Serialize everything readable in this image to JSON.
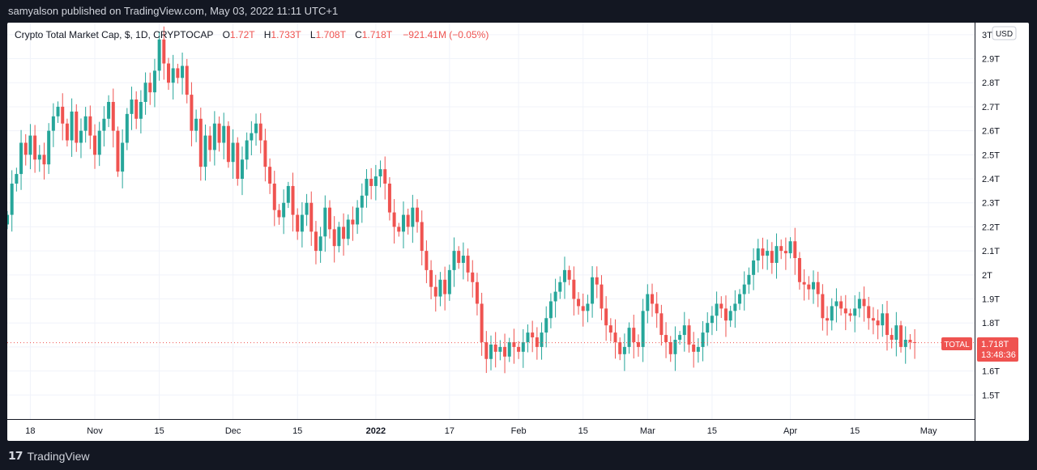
{
  "publisher_line": "samyalson published on TradingView.com, May 03, 2022 11:11 UTC+1",
  "legend": {
    "symbol": "Crypto Total Market Cap, $, 1D, CRYPTOCAP",
    "o_label": "O",
    "o_value": "1.72T",
    "h_label": "H",
    "h_value": "1.733T",
    "l_label": "L",
    "l_value": "1.708T",
    "c_label": "C",
    "c_value": "1.718T",
    "change": "−921.41M (−0.05%)"
  },
  "currency_badge": "USD",
  "price_tag": {
    "name": "TOTAL",
    "value": "1.718T",
    "countdown": "13:48:36"
  },
  "footer_brand": "TradingView",
  "colors": {
    "up": "#26a69a",
    "down": "#ef5350",
    "grid": "#f0f3fa",
    "axis_text": "#131722",
    "legend_value": "#ef5350"
  },
  "chart_data": {
    "type": "candlestick",
    "title": "Crypto Total Market Cap, $, 1D, CRYPTOCAP",
    "ylabel": "",
    "ylim": [
      1.4,
      3.05
    ],
    "y_ticks": [
      {
        "value": 1.5,
        "label": "1.5T"
      },
      {
        "value": 1.6,
        "label": "1.6T"
      },
      {
        "value": 1.7,
        "label": "1.7T"
      },
      {
        "value": 1.8,
        "label": "1.8T"
      },
      {
        "value": 1.9,
        "label": "1.9T"
      },
      {
        "value": 2.0,
        "label": "2T"
      },
      {
        "value": 2.1,
        "label": "2.1T"
      },
      {
        "value": 2.2,
        "label": "2.2T"
      },
      {
        "value": 2.3,
        "label": "2.3T"
      },
      {
        "value": 2.4,
        "label": "2.4T"
      },
      {
        "value": 2.5,
        "label": "2.5T"
      },
      {
        "value": 2.6,
        "label": "2.6T"
      },
      {
        "value": 2.7,
        "label": "2.7T"
      },
      {
        "value": 2.8,
        "label": "2.8T"
      },
      {
        "value": 2.9,
        "label": "2.9T"
      },
      {
        "value": 3.0,
        "label": "3T"
      }
    ],
    "x_ticks": [
      {
        "date": "2021-10-18",
        "label": "18"
      },
      {
        "date": "2021-11-01",
        "label": "Nov"
      },
      {
        "date": "2021-11-15",
        "label": "15"
      },
      {
        "date": "2021-12-01",
        "label": "Dec"
      },
      {
        "date": "2021-12-15",
        "label": "15"
      },
      {
        "date": "2022-01-01",
        "label": "2022"
      },
      {
        "date": "2022-01-17",
        "label": "17"
      },
      {
        "date": "2022-02-01",
        "label": "Feb"
      },
      {
        "date": "2022-02-15",
        "label": "15"
      },
      {
        "date": "2022-03-01",
        "label": "Mar"
      },
      {
        "date": "2022-03-15",
        "label": "15"
      },
      {
        "date": "2022-04-01",
        "label": "Apr"
      },
      {
        "date": "2022-04-15",
        "label": "15"
      },
      {
        "date": "2022-05-01",
        "label": "May"
      }
    ],
    "x_start": "2021-10-13",
    "x_end": "2022-05-11",
    "last_price": 1.718,
    "grid": true,
    "close": [
      2.25,
      2.38,
      2.42,
      2.55,
      2.5,
      2.58,
      2.48,
      2.5,
      2.46,
      2.6,
      2.66,
      2.7,
      2.63,
      2.56,
      2.68,
      2.55,
      2.6,
      2.66,
      2.58,
      2.5,
      2.6,
      2.65,
      2.72,
      2.6,
      2.43,
      2.55,
      2.67,
      2.73,
      2.65,
      2.72,
      2.8,
      2.76,
      2.85,
      2.98,
      2.88,
      2.8,
      2.86,
      2.82,
      2.87,
      2.75,
      2.6,
      2.65,
      2.45,
      2.58,
      2.52,
      2.63,
      2.55,
      2.62,
      2.47,
      2.55,
      2.4,
      2.48,
      2.56,
      2.59,
      2.63,
      2.56,
      2.45,
      2.38,
      2.27,
      2.24,
      2.3,
      2.37,
      2.25,
      2.18,
      2.25,
      2.3,
      2.18,
      2.1,
      2.16,
      2.28,
      2.19,
      2.12,
      2.2,
      2.15,
      2.23,
      2.21,
      2.28,
      2.33,
      2.4,
      2.37,
      2.41,
      2.44,
      2.38,
      2.26,
      2.2,
      2.18,
      2.25,
      2.2,
      2.28,
      2.22,
      2.1,
      2.02,
      1.95,
      1.91,
      1.98,
      1.92,
      2.02,
      2.1,
      2.05,
      2.08,
      2.01,
      1.97,
      1.88,
      1.72,
      1.65,
      1.71,
      1.68,
      1.7,
      1.66,
      1.72,
      1.7,
      1.68,
      1.72,
      1.76,
      1.74,
      1.7,
      1.76,
      1.82,
      1.89,
      1.93,
      1.97,
      2.02,
      1.98,
      1.9,
      1.87,
      1.85,
      1.88,
      1.99,
      1.96,
      1.86,
      1.79,
      1.76,
      1.72,
      1.67,
      1.7,
      1.78,
      1.72,
      1.7,
      1.85,
      1.92,
      1.88,
      1.84,
      1.75,
      1.72,
      1.67,
      1.73,
      1.75,
      1.79,
      1.71,
      1.68,
      1.7,
      1.76,
      1.8,
      1.83,
      1.88,
      1.86,
      1.81,
      1.85,
      1.88,
      1.92,
      1.96,
      2.0,
      2.06,
      2.11,
      2.08,
      2.1,
      2.05,
      2.12,
      2.1,
      2.09,
      2.14,
      2.07,
      1.97,
      1.96,
      1.94,
      1.97,
      1.92,
      1.82,
      1.81,
      1.87,
      1.89,
      1.86,
      1.84,
      1.83,
      1.86,
      1.9,
      1.87,
      1.82,
      1.81,
      1.79,
      1.84,
      1.75,
      1.73,
      1.79,
      1.7,
      1.73,
      1.72,
      1.718
    ]
  }
}
